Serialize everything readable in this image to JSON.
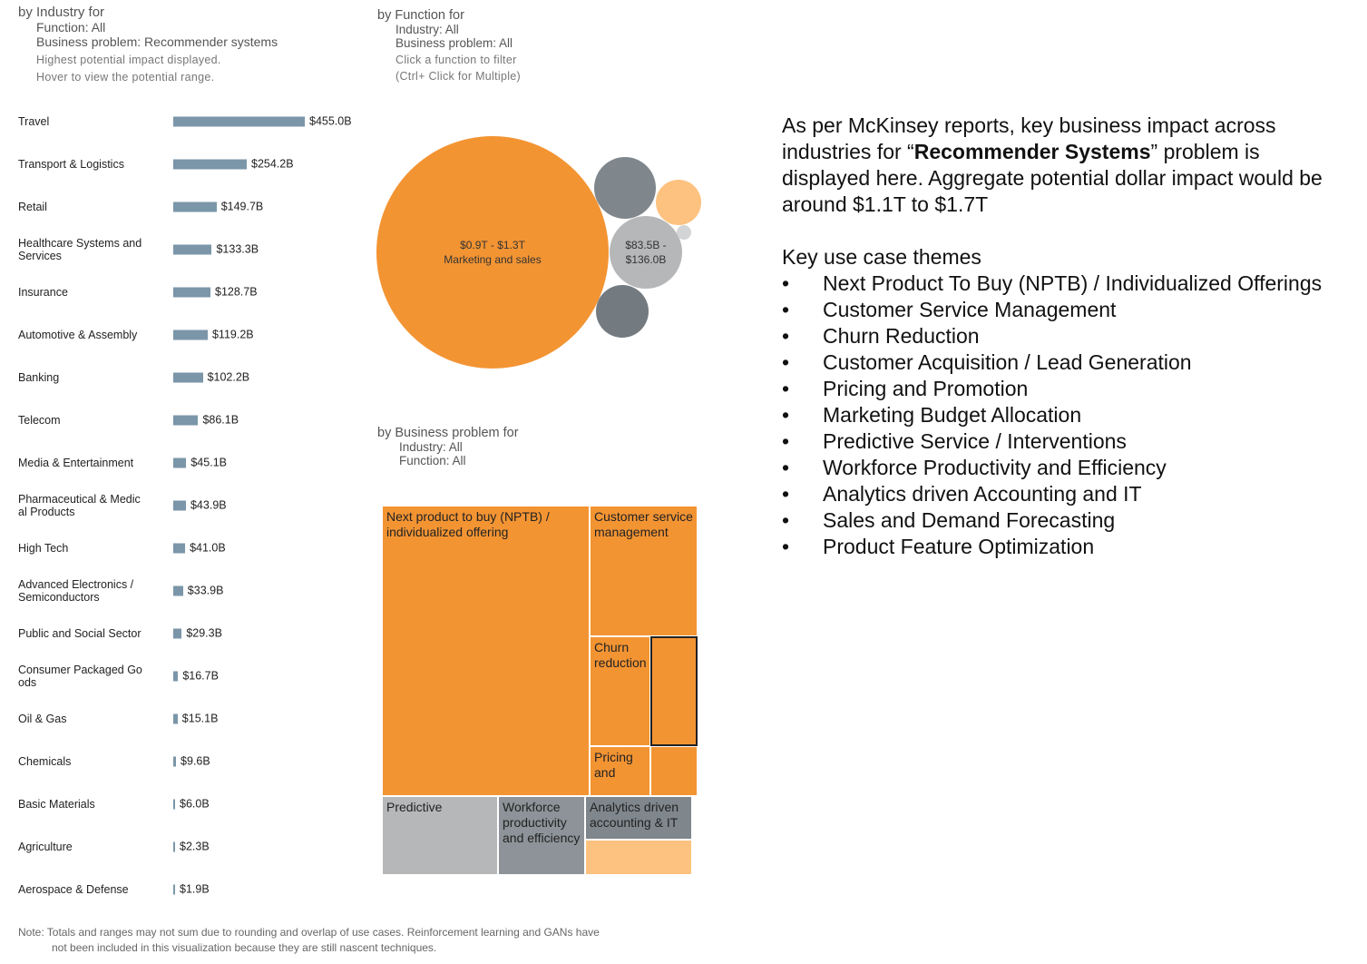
{
  "industry_header": {
    "title": "by Industry for",
    "function_filter": "Function: All",
    "problem_filter": "Business problem: Recommender systems",
    "hint1": "Highest potential impact displayed.",
    "hint2": "Hover to view the potential range."
  },
  "function_header": {
    "title": "by Function for",
    "industry_filter": "Industry: All",
    "problem_filter": "Business problem: All",
    "hint1": "Click a function to filter",
    "hint2": "(Ctrl+ Click for Multiple)"
  },
  "problem_header": {
    "title": "by Business problem for",
    "industry_filter": "Industry: All",
    "function_filter": "Function: All"
  },
  "colors": {
    "bar": "#7b96a8",
    "orange": "#f39433",
    "light_orange": "#fdc27f",
    "dark_gray": "#7f878d",
    "mid_gray": "#b5b7b8",
    "light_gray": "#d3d4d5"
  },
  "chart_data": [
    {
      "type": "bar",
      "orientation": "horizontal",
      "categories": [
        "Travel",
        "Transport & Logistics",
        "Retail",
        "Healthcare Systems and Services",
        "Insurance",
        "Automotive & Assembly",
        "Banking",
        "Telecom",
        "Media & Entertainment",
        "Pharmaceutical & Medical Products",
        "High Tech",
        "Advanced Electronics / Semiconductors",
        "Public and Social Sector",
        "Consumer Packaged Goods",
        "Oil & Gas",
        "Chemicals",
        "Basic Materials",
        "Agriculture",
        "Aerospace & Defense"
      ],
      "category_labels": [
        "Travel",
        "Transport & Logistics",
        "Retail",
        "Healthcare Systems and\nServices",
        "Insurance",
        "Automotive & Assembly",
        "Banking",
        "Telecom",
        "Media & Entertainment",
        "Pharmaceutical & Medic\nal Products",
        "High Tech",
        "Advanced Electronics /\nSemiconductors",
        "Public and Social Sector",
        "Consumer Packaged Go\nods",
        "Oil & Gas",
        "Chemicals",
        "Basic Materials",
        "Agriculture",
        "Aerospace & Defense"
      ],
      "values": [
        455.0,
        254.2,
        149.7,
        133.3,
        128.7,
        119.2,
        102.2,
        86.1,
        45.1,
        43.9,
        41.0,
        33.9,
        29.3,
        16.7,
        15.1,
        9.6,
        6.0,
        2.3,
        1.9
      ],
      "value_labels": [
        "$455.0B",
        "$254.2B",
        "$149.7B",
        "$133.3B",
        "$128.7B",
        "$119.2B",
        "$102.2B",
        "$86.1B",
        "$45.1B",
        "$43.9B",
        "$41.0B",
        "$33.9B",
        "$29.3B",
        "$16.7B",
        "$15.1B",
        "$9.6B",
        "$6.0B",
        "$2.3B",
        "$1.9B"
      ],
      "unit": "USD billions"
    },
    {
      "type": "bubble",
      "bubbles": [
        {
          "value_label": "$0.9T - $1.3T",
          "name": "Marketing and sales",
          "color": "#f39433"
        },
        {
          "value_label": "$83.5B - $136.0B",
          "name": "",
          "color": "#b5b7b8"
        },
        {
          "value_label": "",
          "name": "",
          "color": "#7f878d"
        },
        {
          "value_label": "",
          "name": "",
          "color": "#fdc27f"
        },
        {
          "value_label": "",
          "name": "",
          "color": "#737b81"
        },
        {
          "value_label": "",
          "name": "",
          "color": "#d3d4d5"
        }
      ]
    },
    {
      "type": "treemap",
      "cells": [
        {
          "label": "Next product to buy (NPTB) / individualized offering",
          "color": "#f39433"
        },
        {
          "label": "Customer service management",
          "color": "#f39433"
        },
        {
          "label": "Churn reduction",
          "color": "#f39433"
        },
        {
          "label": "",
          "color": "#f39433",
          "highlighted": true
        },
        {
          "label": "Pricing and",
          "color": "#f39433"
        },
        {
          "label": "",
          "color": "#f39433"
        },
        {
          "label": "Predictive",
          "color": "#b5b7b8"
        },
        {
          "label": "Workforce productivity and efficiency",
          "color": "#8d9398"
        },
        {
          "label": "Analytics driven accounting & IT",
          "color": "#7f878d"
        },
        {
          "label": "",
          "color": "#fdc27f"
        }
      ]
    }
  ],
  "summary": {
    "intro_before": "As per McKinsey reports, key business impact across industries for “",
    "intro_bold": "Recommender Systems",
    "intro_after": "” problem is displayed here. Aggregate potential dollar impact would be around $1.1T to $1.7T",
    "themes_title": "Key use case themes",
    "bullet_char": "•",
    "themes": [
      "Next Product To Buy (NPTB) / Individualized Offerings",
      "Customer Service Management",
      "Churn Reduction",
      "Customer Acquisition / Lead Generation",
      "Pricing and Promotion",
      "Marketing Budget Allocation",
      "Predictive Service / Interventions",
      "Workforce Productivity and Efficiency",
      "Analytics driven Accounting and IT",
      "Sales and Demand Forecasting",
      "Product Feature Optimization"
    ]
  },
  "footnote": {
    "line1": "Note: Totals and ranges may not sum due to rounding and overlap of use cases.  Reinforcement learning and GANs have",
    "line2": "not been included in this visualization because they are still nascent techniques."
  }
}
